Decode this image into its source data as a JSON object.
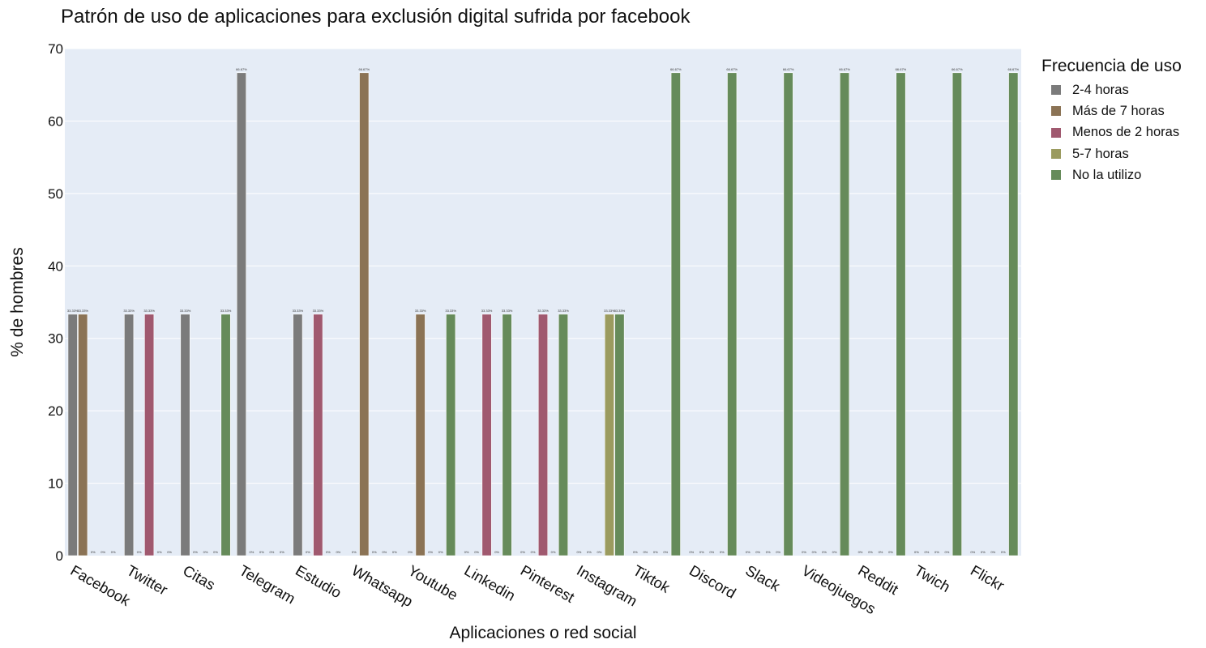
{
  "chart_data": {
    "type": "bar",
    "title": "Patrón de uso de aplicaciones para exclusión digital sufrida por facebook",
    "xlabel": "Aplicaciones o red social",
    "ylabel": "% de hombres",
    "ylim": [
      0,
      70
    ],
    "yticks": [
      0,
      10,
      20,
      30,
      40,
      50,
      60,
      70
    ],
    "grid": true,
    "legend_title": "Frecuencia de uso",
    "legend_position": "right",
    "categories": [
      "Facebook",
      "Twitter",
      "Citas",
      "Telegram",
      "Estudio",
      "Whatsapp",
      "Youtube",
      "Linkedin",
      "Pinterest",
      "Instagram",
      "Tiktok",
      "Discord",
      "Slack",
      "Videojuegos",
      "Reddit",
      "Twich",
      "Flickr"
    ],
    "series": [
      {
        "name": "2-4 horas",
        "color": "#7b7b7b",
        "values": [
          33.33,
          33.33,
          33.33,
          66.67,
          33.33,
          0,
          0,
          0,
          0,
          0,
          0,
          0,
          0,
          0,
          0,
          0,
          0
        ],
        "labels": [
          "33.33%",
          "33.33%",
          "33.33%",
          "66.67%",
          "33.33%",
          "0%",
          "0%",
          "0%",
          "0%",
          "0%",
          "0%",
          "0%",
          "0%",
          "0%",
          "0%",
          "0%",
          "0%"
        ]
      },
      {
        "name": "Más de 7 horas",
        "color": "#8b7355",
        "values": [
          33.33,
          0,
          0,
          0,
          0,
          66.67,
          33.33,
          0,
          0,
          0,
          0,
          0,
          0,
          0,
          0,
          0,
          0
        ],
        "labels": [
          "33.33%",
          "0%",
          "0%",
          "0%",
          "0%",
          "66.67%",
          "33.33%",
          "0%",
          "0%",
          "0%",
          "0%",
          "0%",
          "0%",
          "0%",
          "0%",
          "0%",
          "0%"
        ]
      },
      {
        "name": "Menos de 2 horas",
        "color": "#a0596f",
        "values": [
          0,
          33.33,
          0,
          0,
          33.33,
          0,
          0,
          33.33,
          33.33,
          0,
          0,
          0,
          0,
          0,
          0,
          0,
          0
        ],
        "labels": [
          "0%",
          "33.33%",
          "0%",
          "0%",
          "33.33%",
          "0%",
          "0%",
          "33.33%",
          "33.33%",
          "0%",
          "0%",
          "0%",
          "0%",
          "0%",
          "0%",
          "0%",
          "0%"
        ]
      },
      {
        "name": "5-7 horas",
        "color": "#9b9b5f",
        "values": [
          0,
          0,
          0,
          0,
          0,
          0,
          0,
          0,
          0,
          33.33,
          0,
          0,
          0,
          0,
          0,
          0,
          0
        ],
        "labels": [
          "0%",
          "0%",
          "0%",
          "0%",
          "0%",
          "0%",
          "0%",
          "0%",
          "0%",
          "33.33%",
          "0%",
          "0%",
          "0%",
          "0%",
          "0%",
          "0%",
          "0%"
        ]
      },
      {
        "name": "No la utilizo",
        "color": "#668b5a",
        "values": [
          0,
          0,
          33.33,
          0,
          0,
          0,
          33.33,
          33.33,
          33.33,
          33.33,
          66.67,
          66.67,
          66.67,
          66.67,
          66.67,
          66.67,
          66.67
        ],
        "labels": [
          "0%",
          "0%",
          "33.33%",
          "0%",
          "0%",
          "0%",
          "33.33%",
          "33.33%",
          "33.33%",
          "33.33%",
          "66.67%",
          "66.67%",
          "66.67%",
          "66.67%",
          "66.67%",
          "66.67%",
          "66.67%"
        ]
      }
    ]
  }
}
